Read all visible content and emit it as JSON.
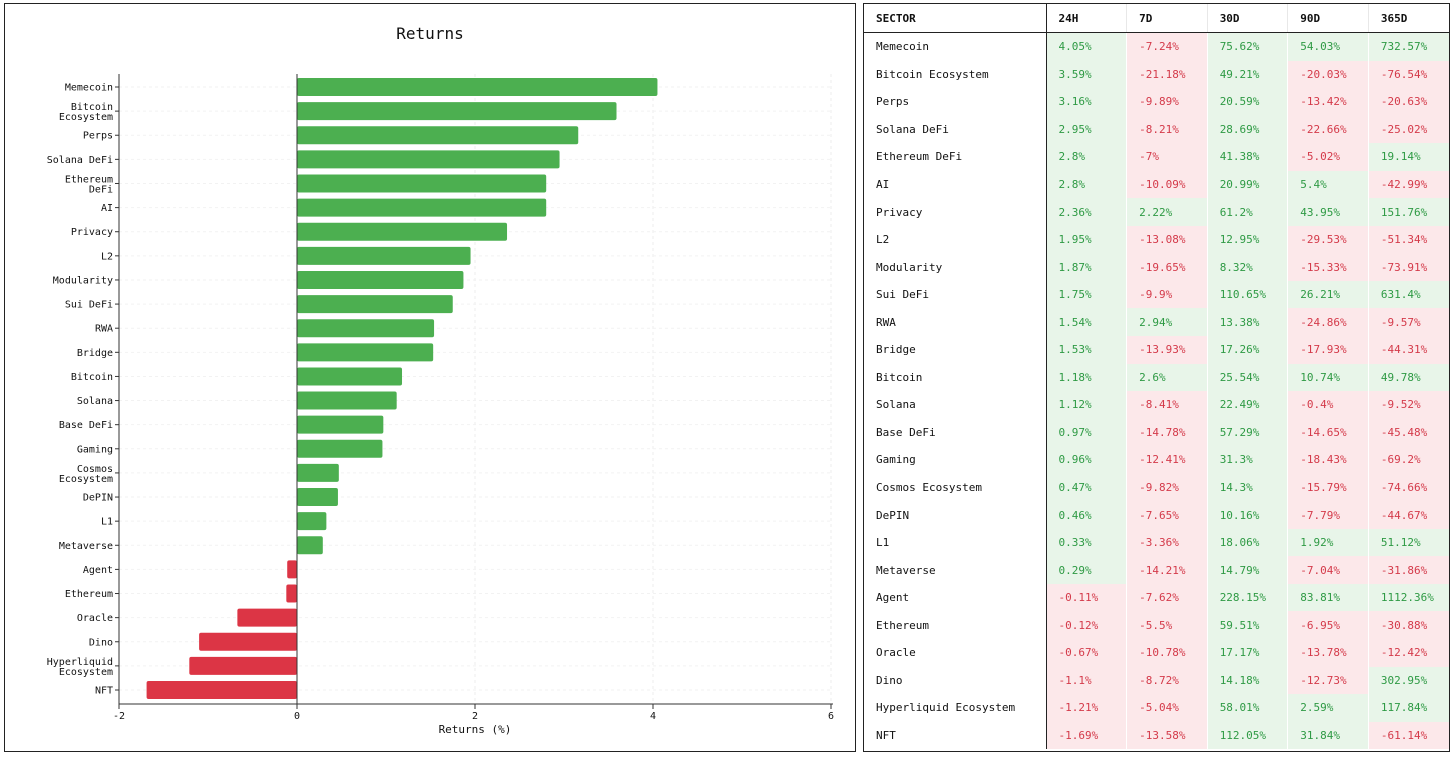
{
  "chart_data": {
    "type": "bar",
    "orientation": "horizontal",
    "title": "Returns",
    "xlabel": "Returns (%)",
    "ylabel": "",
    "xlim": [
      -2,
      6
    ],
    "xticks": [
      -2,
      0,
      2,
      4,
      6
    ],
    "grid": true,
    "colors": {
      "positive": "#4caf50",
      "negative": "#dc3545"
    },
    "categories": [
      "Memecoin",
      "Bitcoin Ecosystem",
      "Perps",
      "Solana DeFi",
      "Ethereum DeFi",
      "AI",
      "Privacy",
      "L2",
      "Modularity",
      "Sui DeFi",
      "RWA",
      "Bridge",
      "Bitcoin",
      "Solana",
      "Base DeFi",
      "Gaming",
      "Cosmos Ecosystem",
      "DePIN",
      "L1",
      "Metaverse",
      "Agent",
      "Ethereum",
      "Oracle",
      "Dino",
      "Hyperliquid Ecosystem",
      "NFT"
    ],
    "values": [
      4.05,
      3.59,
      3.16,
      2.95,
      2.8,
      2.8,
      2.36,
      1.95,
      1.87,
      1.75,
      1.54,
      1.53,
      1.18,
      1.12,
      0.97,
      0.96,
      0.47,
      0.46,
      0.33,
      0.29,
      -0.11,
      -0.12,
      -0.67,
      -1.1,
      -1.21,
      -1.69
    ]
  },
  "table": {
    "headers": [
      "SECTOR",
      "24H",
      "7D",
      "30D",
      "90D",
      "365D"
    ],
    "rows": [
      [
        "Memecoin",
        "4.05%",
        "-7.24%",
        "75.62%",
        "54.03%",
        "732.57%"
      ],
      [
        "Bitcoin Ecosystem",
        "3.59%",
        "-21.18%",
        "49.21%",
        "-20.03%",
        "-76.54%"
      ],
      [
        "Perps",
        "3.16%",
        "-9.89%",
        "20.59%",
        "-13.42%",
        "-20.63%"
      ],
      [
        "Solana DeFi",
        "2.95%",
        "-8.21%",
        "28.69%",
        "-22.66%",
        "-25.02%"
      ],
      [
        "Ethereum DeFi",
        "2.8%",
        "-7%",
        "41.38%",
        "-5.02%",
        "19.14%"
      ],
      [
        "AI",
        "2.8%",
        "-10.09%",
        "20.99%",
        "5.4%",
        "-42.99%"
      ],
      [
        "Privacy",
        "2.36%",
        "2.22%",
        "61.2%",
        "43.95%",
        "151.76%"
      ],
      [
        "L2",
        "1.95%",
        "-13.08%",
        "12.95%",
        "-29.53%",
        "-51.34%"
      ],
      [
        "Modularity",
        "1.87%",
        "-19.65%",
        "8.32%",
        "-15.33%",
        "-73.91%"
      ],
      [
        "Sui DeFi",
        "1.75%",
        "-9.9%",
        "110.65%",
        "26.21%",
        "631.4%"
      ],
      [
        "RWA",
        "1.54%",
        "2.94%",
        "13.38%",
        "-24.86%",
        "-9.57%"
      ],
      [
        "Bridge",
        "1.53%",
        "-13.93%",
        "17.26%",
        "-17.93%",
        "-44.31%"
      ],
      [
        "Bitcoin",
        "1.18%",
        "2.6%",
        "25.54%",
        "10.74%",
        "49.78%"
      ],
      [
        "Solana",
        "1.12%",
        "-8.41%",
        "22.49%",
        "-0.4%",
        "-9.52%"
      ],
      [
        "Base DeFi",
        "0.97%",
        "-14.78%",
        "57.29%",
        "-14.65%",
        "-45.48%"
      ],
      [
        "Gaming",
        "0.96%",
        "-12.41%",
        "31.3%",
        "-18.43%",
        "-69.2%"
      ],
      [
        "Cosmos Ecosystem",
        "0.47%",
        "-9.82%",
        "14.3%",
        "-15.79%",
        "-74.66%"
      ],
      [
        "DePIN",
        "0.46%",
        "-7.65%",
        "10.16%",
        "-7.79%",
        "-44.67%"
      ],
      [
        "L1",
        "0.33%",
        "-3.36%",
        "18.06%",
        "1.92%",
        "51.12%"
      ],
      [
        "Metaverse",
        "0.29%",
        "-14.21%",
        "14.79%",
        "-7.04%",
        "-31.86%"
      ],
      [
        "Agent",
        "-0.11%",
        "-7.62%",
        "228.15%",
        "83.81%",
        "1112.36%"
      ],
      [
        "Ethereum",
        "-0.12%",
        "-5.5%",
        "59.51%",
        "-6.95%",
        "-30.88%"
      ],
      [
        "Oracle",
        "-0.67%",
        "-10.78%",
        "17.17%",
        "-13.78%",
        "-12.42%"
      ],
      [
        "Dino",
        "-1.1%",
        "-8.72%",
        "14.18%",
        "-12.73%",
        "302.95%"
      ],
      [
        "Hyperliquid Ecosystem",
        "-1.21%",
        "-5.04%",
        "58.01%",
        "2.59%",
        "117.84%"
      ],
      [
        "NFT",
        "-1.69%",
        "-13.58%",
        "112.05%",
        "31.84%",
        "-61.14%"
      ]
    ]
  }
}
